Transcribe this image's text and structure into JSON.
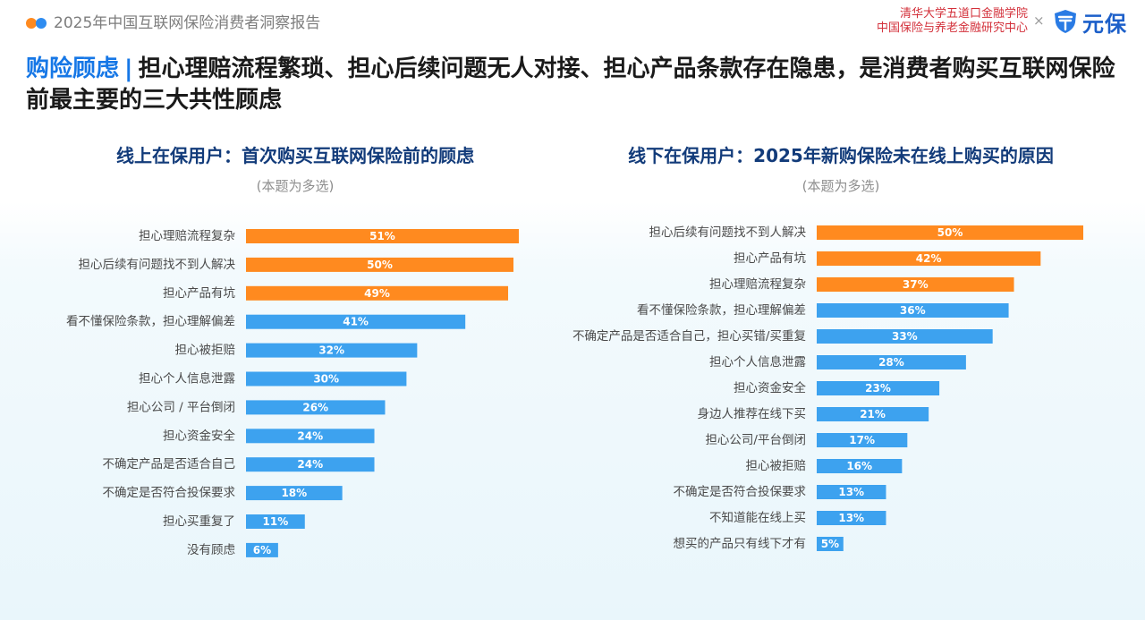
{
  "header": {
    "report_title": "2025年中国互联网保险消费者洞察报告",
    "institution_line1": "清华大学五道口金融学院",
    "institution_line2": "中国保险与养老金融研究中心",
    "times_sign": "×",
    "brand_name": "元保",
    "brand_icon": "shield-logo-icon"
  },
  "headline": {
    "keyword": "购险顾虑",
    "separator": "|",
    "text": "担心理赔流程繁琐、担心后续问题无人对接、担心产品条款存在隐患，是消费者购买互联网保险前最主要的三大共性顾虑"
  },
  "colors": {
    "highlight": "#ff8a1f",
    "normal": "#3da2ef",
    "title": "#123b7a",
    "accent": "#1677e6"
  },
  "chart_data": [
    {
      "type": "bar",
      "orientation": "horizontal",
      "title": "线上在保用户：首次购买互联网保险前的顾虑",
      "subtitle": "(本题为多选)",
      "unit": "%",
      "highlight_top": 3,
      "categories": [
        "担心理赔流程复杂",
        "担心后续有问题找不到人解决",
        "担心产品有坑",
        "看不懂保险条款，担心理解偏差",
        "担心被拒赔",
        "担心个人信息泄露",
        "担心公司 / 平台倒闭",
        "担心资金安全",
        "不确定产品是否适合自己",
        "不确定是否符合投保要求",
        "担心买重复了",
        "没有顾虑"
      ],
      "values": [
        51,
        50,
        49,
        41,
        32,
        30,
        26,
        24,
        24,
        18,
        11,
        6
      ],
      "labels": [
        "51%",
        "50%",
        "49%",
        "41%",
        "32%",
        "30%",
        "26%",
        "24%",
        "24%",
        "18%",
        "11%",
        "6%"
      ]
    },
    {
      "type": "bar",
      "orientation": "horizontal",
      "title": "线下在保用户：2025年新购保险未在线上购买的原因",
      "subtitle": "(本题为多选)",
      "unit": "%",
      "highlight_top": 3,
      "categories": [
        "担心后续有问题找不到人解决",
        "担心产品有坑",
        "担心理赔流程复杂",
        "看不懂保险条款，担心理解偏差",
        "不确定产品是否适合自己，担心买错/买重复",
        "担心个人信息泄露",
        "担心资金安全",
        "身边人推荐在线下买",
        "担心公司/平台倒闭",
        "担心被拒赔",
        "不确定是否符合投保要求",
        "不知道能在线上买",
        "想买的产品只有线下才有"
      ],
      "values": [
        50,
        42,
        37,
        36,
        33,
        28,
        23,
        21,
        17,
        16,
        13,
        13,
        5
      ],
      "labels": [
        "50%",
        "42%",
        "37%",
        "36%",
        "33%",
        "28%",
        "23%",
        "21%",
        "17%",
        "16%",
        "13%",
        "13%",
        "5%"
      ]
    }
  ]
}
